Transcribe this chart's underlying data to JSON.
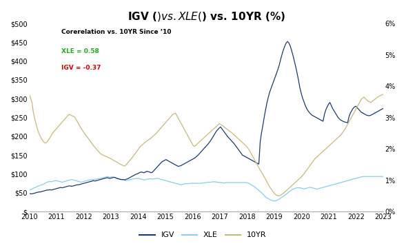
{
  "title": "IGV ($) vs. XLE ($) vs. 10YR (%)",
  "title_fontsize": 11,
  "annotation_title": "Corerelation vs. 10YR Since ’10",
  "annotation_xle": "XLE = 0.58",
  "annotation_igv": "IGV = -0.37",
  "annotation_xle_color": "#22aa22",
  "annotation_igv_color": "#cc0000",
  "igv_color": "#1a3a6b",
  "xle_color": "#87ceeb",
  "tyr_color": "#c8b87a",
  "left_ylim": [
    0,
    500
  ],
  "right_ylim": [
    0,
    0.06
  ],
  "left_yticks": [
    0,
    50,
    100,
    150,
    200,
    250,
    300,
    350,
    400,
    450,
    500
  ],
  "right_yticks": [
    0,
    0.01,
    0.02,
    0.03,
    0.04,
    0.05,
    0.06
  ],
  "left_ytick_labels": [
    "$",
    "$50",
    "$100",
    "$150",
    "$200",
    "$250",
    "$300",
    "$350",
    "$400",
    "$450",
    "$500"
  ],
  "right_ytick_labels": [
    "0%",
    "1%",
    "2%",
    "3%",
    "4%",
    "5%",
    "6%"
  ],
  "xtick_labels": [
    "2010",
    "2011",
    "2012",
    "2013",
    "2014",
    "2015",
    "2016",
    "2017",
    "2018",
    "2019",
    "2020",
    "2021",
    "2022",
    "2023"
  ],
  "background_color": "#ffffff",
  "legend_labels": [
    "IGV",
    "XLE",
    "10YR"
  ],
  "igv_data": [
    48,
    47,
    47,
    48,
    49,
    50,
    51,
    52,
    52,
    53,
    54,
    55,
    56,
    57,
    57,
    58,
    57,
    58,
    59,
    60,
    61,
    62,
    63,
    64,
    63,
    64,
    65,
    66,
    67,
    68,
    68,
    67,
    68,
    69,
    70,
    71,
    71,
    72,
    73,
    74,
    75,
    76,
    77,
    78,
    79,
    80,
    81,
    82,
    81,
    82,
    83,
    84,
    85,
    86,
    87,
    88,
    89,
    90,
    89,
    88,
    89,
    90,
    91,
    90,
    88,
    87,
    86,
    85,
    85,
    85,
    84,
    86,
    87,
    89,
    91,
    93,
    95,
    97,
    99,
    100,
    102,
    104,
    105,
    104,
    103,
    105,
    107,
    106,
    105,
    103,
    104,
    108,
    112,
    116,
    120,
    124,
    128,
    132,
    134,
    136,
    138,
    136,
    134,
    132,
    130,
    128,
    126,
    124,
    122,
    120,
    121,
    122,
    124,
    126,
    128,
    130,
    132,
    134,
    136,
    138,
    140,
    142,
    145,
    148,
    152,
    156,
    160,
    164,
    168,
    172,
    176,
    180,
    185,
    190,
    196,
    202,
    208,
    214,
    218,
    222,
    225,
    220,
    215,
    210,
    205,
    200,
    196,
    192,
    188,
    184,
    180,
    175,
    170,
    165,
    160,
    155,
    150,
    148,
    146,
    144,
    142,
    140,
    138,
    136,
    134,
    132,
    130,
    128,
    126,
    185,
    210,
    230,
    252,
    272,
    290,
    305,
    318,
    328,
    338,
    348,
    358,
    368,
    378,
    390,
    405,
    418,
    430,
    440,
    448,
    452,
    448,
    440,
    428,
    415,
    400,
    385,
    368,
    350,
    330,
    315,
    302,
    292,
    282,
    274,
    268,
    263,
    259,
    256,
    254,
    252,
    250,
    248,
    246,
    244,
    242,
    240,
    258,
    270,
    278,
    285,
    290,
    282,
    274,
    268,
    262,
    256,
    250,
    246,
    243,
    241,
    239,
    238,
    237,
    236,
    252,
    262,
    268,
    274,
    278,
    280,
    276,
    272,
    268,
    264,
    262,
    260,
    258,
    256,
    255,
    255,
    256,
    258,
    260,
    262,
    264,
    266,
    268,
    270,
    272,
    274
  ],
  "xle_data": [
    57,
    58,
    60,
    62,
    63,
    65,
    67,
    68,
    70,
    71,
    72,
    74,
    76,
    78,
    79,
    80,
    79,
    80,
    81,
    82,
    82,
    81,
    80,
    79,
    78,
    79,
    80,
    81,
    82,
    83,
    84,
    85,
    84,
    83,
    82,
    81,
    80,
    79,
    78,
    79,
    80,
    81,
    82,
    83,
    84,
    84,
    85,
    85,
    86,
    86,
    87,
    87,
    88,
    89,
    90,
    91,
    92,
    93,
    92,
    91,
    92,
    92,
    91,
    90,
    89,
    88,
    87,
    86,
    85,
    84,
    83,
    82,
    83,
    84,
    85,
    86,
    87,
    87,
    88,
    88,
    88,
    87,
    86,
    85,
    84,
    85,
    86,
    86,
    87,
    87,
    86,
    87,
    87,
    88,
    88,
    87,
    86,
    85,
    84,
    83,
    82,
    81,
    80,
    79,
    78,
    77,
    76,
    75,
    74,
    73,
    72,
    71,
    72,
    73,
    74,
    74,
    74,
    74,
    75,
    75,
    75,
    75,
    75,
    75,
    75,
    75,
    75,
    76,
    76,
    77,
    77,
    78,
    78,
    78,
    79,
    79,
    79,
    78,
    78,
    77,
    77,
    77,
    76,
    76,
    77,
    77,
    77,
    77,
    77,
    77,
    77,
    77,
    77,
    77,
    77,
    77,
    77,
    77,
    77,
    77,
    76,
    74,
    72,
    70,
    68,
    65,
    62,
    59,
    56,
    53,
    50,
    46,
    42,
    38,
    36,
    34,
    32,
    30,
    29,
    28,
    28,
    29,
    31,
    33,
    36,
    38,
    40,
    43,
    46,
    49,
    52,
    55,
    57,
    59,
    61,
    62,
    63,
    63,
    63,
    62,
    61,
    60,
    61,
    62,
    63,
    64,
    64,
    63,
    62,
    61,
    60,
    60,
    61,
    62,
    63,
    64,
    65,
    66,
    67,
    68,
    69,
    70,
    71,
    72,
    73,
    74,
    75,
    76,
    77,
    78,
    79,
    80,
    81,
    82,
    83,
    84,
    85,
    86,
    87,
    88,
    89,
    90,
    91,
    92,
    93,
    93,
    93,
    93,
    93,
    93,
    93,
    93,
    93,
    93,
    93,
    93,
    93,
    93,
    93,
    93
  ],
  "tyr_data": [
    3.73,
    3.6,
    3.47,
    3.15,
    2.95,
    2.78,
    2.62,
    2.5,
    2.4,
    2.32,
    2.25,
    2.2,
    2.18,
    2.22,
    2.28,
    2.35,
    2.42,
    2.5,
    2.55,
    2.6,
    2.65,
    2.7,
    2.75,
    2.8,
    2.85,
    2.9,
    2.95,
    3.0,
    3.05,
    3.1,
    3.08,
    3.06,
    3.04,
    3.02,
    2.95,
    2.88,
    2.8,
    2.72,
    2.65,
    2.58,
    2.52,
    2.46,
    2.4,
    2.34,
    2.28,
    2.22,
    2.16,
    2.1,
    2.05,
    2.0,
    1.95,
    1.9,
    1.85,
    1.82,
    1.8,
    1.78,
    1.76,
    1.74,
    1.72,
    1.7,
    1.68,
    1.65,
    1.62,
    1.6,
    1.58,
    1.55,
    1.52,
    1.5,
    1.48,
    1.46,
    1.45,
    1.5,
    1.55,
    1.6,
    1.65,
    1.7,
    1.76,
    1.82,
    1.88,
    1.94,
    2.0,
    2.06,
    2.1,
    2.14,
    2.18,
    2.22,
    2.25,
    2.28,
    2.31,
    2.34,
    2.38,
    2.42,
    2.46,
    2.5,
    2.55,
    2.6,
    2.65,
    2.7,
    2.75,
    2.8,
    2.85,
    2.9,
    2.95,
    3.0,
    3.05,
    3.1,
    3.12,
    3.14,
    3.06,
    2.98,
    2.9,
    2.82,
    2.74,
    2.66,
    2.58,
    2.5,
    2.42,
    2.34,
    2.26,
    2.18,
    2.1,
    2.08,
    2.12,
    2.16,
    2.2,
    2.24,
    2.28,
    2.32,
    2.36,
    2.4,
    2.44,
    2.48,
    2.52,
    2.56,
    2.6,
    2.64,
    2.68,
    2.72,
    2.76,
    2.8,
    2.78,
    2.75,
    2.72,
    2.68,
    2.65,
    2.62,
    2.58,
    2.55,
    2.52,
    2.48,
    2.44,
    2.4,
    2.36,
    2.32,
    2.28,
    2.24,
    2.2,
    2.16,
    2.12,
    2.08,
    2.02,
    1.96,
    1.88,
    1.8,
    1.72,
    1.64,
    1.56,
    1.48,
    1.4,
    1.32,
    1.25,
    1.18,
    1.1,
    1.02,
    0.94,
    0.86,
    0.78,
    0.72,
    0.66,
    0.6,
    0.55,
    0.52,
    0.5,
    0.5,
    0.52,
    0.55,
    0.58,
    0.62,
    0.66,
    0.7,
    0.74,
    0.78,
    0.82,
    0.86,
    0.9,
    0.94,
    0.98,
    1.02,
    1.06,
    1.1,
    1.15,
    1.2,
    1.26,
    1.32,
    1.38,
    1.44,
    1.5,
    1.56,
    1.62,
    1.68,
    1.72,
    1.76,
    1.8,
    1.84,
    1.88,
    1.92,
    1.96,
    2.0,
    2.04,
    2.08,
    2.12,
    2.16,
    2.2,
    2.24,
    2.28,
    2.32,
    2.36,
    2.4,
    2.44,
    2.5,
    2.56,
    2.62,
    2.7,
    2.78,
    2.86,
    2.94,
    3.02,
    3.1,
    3.18,
    3.26,
    3.34,
    3.42,
    3.5,
    3.58,
    3.62,
    3.65,
    3.6,
    3.56,
    3.52,
    3.5,
    3.48,
    3.52,
    3.55,
    3.58,
    3.62,
    3.65,
    3.68,
    3.7,
    3.72,
    3.74
  ]
}
